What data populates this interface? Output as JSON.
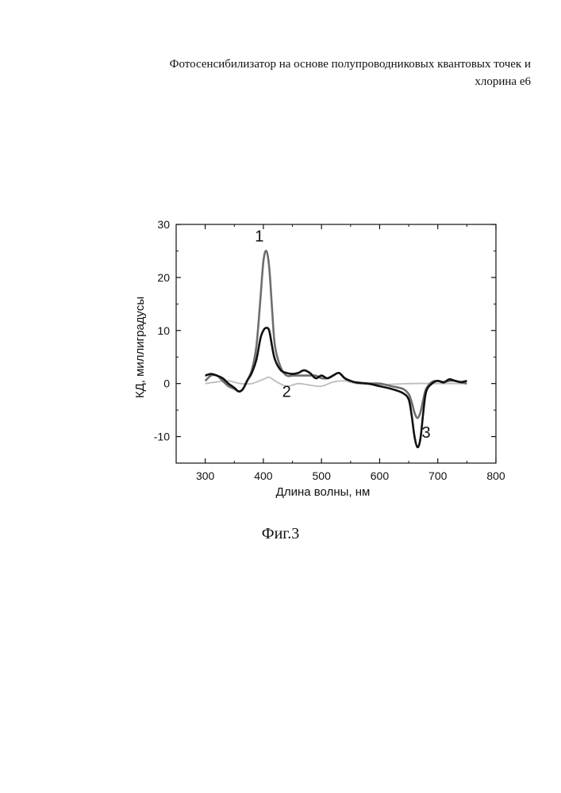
{
  "header": {
    "line1": "Фотосенсибилизатор на основе полупроводниковых квантовых точек и",
    "line2": "хлорина е6"
  },
  "caption": "Фиг.3",
  "chart_data": {
    "type": "line",
    "xlabel": "Длина волны, нм",
    "ylabel": "КД, миллиградусы",
    "xlim": [
      250,
      800
    ],
    "ylim": [
      -15,
      30
    ],
    "xticks": [
      300,
      400,
      500,
      600,
      700,
      800
    ],
    "yticks": [
      -10,
      0,
      10,
      20,
      30
    ],
    "grid": false,
    "series": [
      {
        "name": "1",
        "color": "#6e6e6e",
        "x": [
          300,
          310,
          320,
          330,
          340,
          350,
          358,
          365,
          372,
          380,
          388,
          395,
          400,
          405,
          410,
          415,
          420,
          430,
          440,
          450,
          460,
          470,
          480,
          490,
          500,
          510,
          520,
          530,
          540,
          550,
          560,
          580,
          600,
          620,
          640,
          650,
          655,
          660,
          665,
          670,
          675,
          680,
          690,
          700,
          710,
          720,
          730,
          740,
          750
        ],
        "y": [
          0.5,
          1.5,
          1.5,
          0.5,
          -0.5,
          -1.0,
          -1.5,
          -1.0,
          0.5,
          2.5,
          7.0,
          16.0,
          23.0,
          25.0,
          22.0,
          14.0,
          7.0,
          3.0,
          1.5,
          1.5,
          1.5,
          1.5,
          1.5,
          1.5,
          1.0,
          1.0,
          1.5,
          2.0,
          1.0,
          0.5,
          0.2,
          0.0,
          0.0,
          -0.5,
          -1.0,
          -2.0,
          -3.5,
          -5.5,
          -6.5,
          -5.5,
          -3.0,
          -1.0,
          0.3,
          0.5,
          0.3,
          0.5,
          0.5,
          0.2,
          0.0
        ]
      },
      {
        "name": "2",
        "color": "#bdbdbd",
        "x": [
          300,
          320,
          340,
          360,
          380,
          400,
          410,
          420,
          440,
          460,
          480,
          500,
          520,
          540,
          560,
          600,
          650,
          700,
          750
        ],
        "y": [
          0.0,
          0.3,
          0.5,
          0.0,
          0.0,
          0.8,
          1.2,
          0.5,
          -0.5,
          0.0,
          -0.3,
          -0.5,
          0.3,
          0.5,
          0.0,
          -0.2,
          0.0,
          0.0,
          0.0
        ],
        "label_pos": [
          440,
          -2.5
        ]
      },
      {
        "name": "3",
        "color": "#111111",
        "x": [
          300,
          310,
          320,
          330,
          340,
          350,
          358,
          365,
          372,
          380,
          388,
          395,
          400,
          405,
          410,
          415,
          420,
          430,
          440,
          450,
          460,
          470,
          480,
          490,
          500,
          510,
          520,
          530,
          540,
          550,
          560,
          580,
          600,
          620,
          640,
          650,
          655,
          660,
          665,
          670,
          675,
          680,
          690,
          700,
          710,
          720,
          730,
          740,
          750
        ],
        "y": [
          1.5,
          1.8,
          1.5,
          1.0,
          0.0,
          -0.8,
          -1.5,
          -1.0,
          0.5,
          2.0,
          4.5,
          8.5,
          10.0,
          10.5,
          10.0,
          7.0,
          4.5,
          2.5,
          2.0,
          1.8,
          2.0,
          2.5,
          2.0,
          1.0,
          1.5,
          1.0,
          1.5,
          2.0,
          1.0,
          0.5,
          0.2,
          0.0,
          -0.5,
          -1.0,
          -1.8,
          -3.0,
          -6.0,
          -10.0,
          -12.0,
          -10.5,
          -5.5,
          -1.5,
          0.0,
          0.5,
          0.2,
          0.8,
          0.5,
          0.3,
          0.5
        ],
        "label_pos": [
          680,
          -10.2
        ]
      }
    ]
  }
}
